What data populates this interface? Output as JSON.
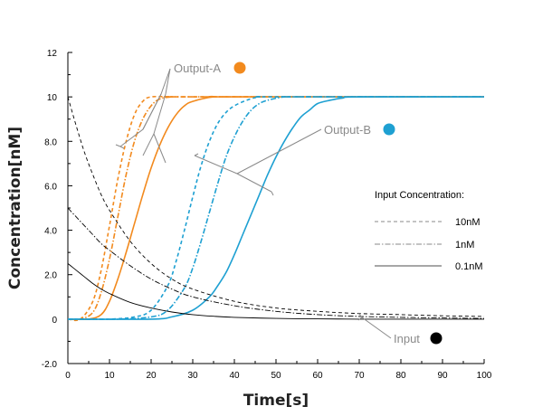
{
  "chart_data": {
    "type": "line",
    "title": "",
    "xlabel": "Time[s]",
    "ylabel": "Concentration[nM]",
    "xlim": [
      0,
      100
    ],
    "ylim": [
      -2.0,
      12.0
    ],
    "x_ticks": [
      "0",
      "10",
      "20",
      "30",
      "40",
      "50",
      "60",
      "70",
      "80",
      "90",
      "100"
    ],
    "y_ticks": [
      "-2.0",
      "0",
      "2.0",
      "4.0",
      "6.0",
      "8.0",
      "10",
      "12"
    ],
    "grid": false,
    "legend": {
      "title": "Input Concentration:",
      "placement": "right",
      "entries": [
        {
          "label": "10nM",
          "style": "dashed"
        },
        {
          "label": "1nM",
          "style": "dashdot"
        },
        {
          "label": "0.1nM",
          "style": "solid"
        }
      ]
    },
    "annotations": [
      {
        "text": "Output-A",
        "color": "#f28a1e"
      },
      {
        "text": "Output-B",
        "color": "#1ea0d2"
      },
      {
        "text": "Input",
        "color": "#000000"
      }
    ],
    "colors": {
      "output_a": "#f28a1e",
      "output_b": "#1ea0d2",
      "input": "#000000",
      "annotation": "#8a8a8a"
    },
    "series": [
      {
        "group": "Output-A",
        "input": "10nM",
        "style": "dashed",
        "x": [
          0,
          3,
          6,
          8,
          10,
          12,
          14,
          16,
          18,
          20,
          25,
          30,
          100
        ],
        "y": [
          0,
          0,
          0.8,
          2.2,
          4.2,
          6.3,
          8.0,
          9.2,
          9.8,
          10.0,
          10.0,
          10.0,
          10.0
        ]
      },
      {
        "group": "Output-A",
        "input": "1nM",
        "style": "dashdot",
        "x": [
          0,
          3,
          6,
          8,
          10,
          12,
          14,
          16,
          18,
          20,
          22,
          25,
          30,
          100
        ],
        "y": [
          0,
          0,
          0.3,
          1.2,
          2.7,
          4.6,
          6.5,
          8.0,
          9.0,
          9.6,
          9.9,
          10.0,
          10.0,
          10.0
        ]
      },
      {
        "group": "Output-A",
        "input": "0.1nM",
        "style": "solid",
        "x": [
          0,
          5,
          8,
          10,
          12,
          14,
          16,
          18,
          20,
          22,
          24,
          26,
          28,
          30,
          35,
          40,
          100
        ],
        "y": [
          0,
          0,
          0.2,
          0.8,
          1.8,
          3.0,
          4.3,
          5.6,
          6.8,
          7.8,
          8.6,
          9.2,
          9.6,
          9.8,
          10.0,
          10.0,
          10.0
        ]
      },
      {
        "group": "Output-B",
        "input": "10nM",
        "style": "dashed",
        "x": [
          0,
          10,
          16,
          20,
          24,
          26,
          28,
          30,
          32,
          34,
          36,
          38,
          40,
          43,
          46,
          50,
          100
        ],
        "y": [
          0,
          0,
          0.1,
          0.4,
          1.5,
          2.6,
          4.0,
          5.5,
          6.9,
          8.0,
          8.8,
          9.3,
          9.6,
          9.85,
          10.0,
          10.0,
          10.0
        ]
      },
      {
        "group": "Output-B",
        "input": "1nM",
        "style": "dashdot",
        "x": [
          0,
          12,
          20,
          24,
          28,
          30,
          32,
          34,
          36,
          38,
          40,
          42,
          44,
          46,
          48,
          52,
          56,
          100
        ],
        "y": [
          0,
          0,
          0.1,
          0.4,
          1.4,
          2.3,
          3.5,
          4.8,
          6.1,
          7.3,
          8.2,
          8.9,
          9.4,
          9.7,
          9.85,
          10.0,
          10.0,
          10.0
        ]
      },
      {
        "group": "Output-B",
        "input": "0.1nM",
        "style": "solid",
        "x": [
          0,
          20,
          25,
          30,
          34,
          36,
          38,
          40,
          42,
          44,
          46,
          48,
          50,
          52,
          54,
          56,
          58,
          60,
          63,
          66,
          70,
          100
        ],
        "y": [
          0,
          0,
          0.1,
          0.4,
          1.0,
          1.5,
          2.1,
          2.9,
          3.8,
          4.7,
          5.6,
          6.5,
          7.3,
          8.0,
          8.6,
          9.1,
          9.4,
          9.7,
          9.85,
          9.95,
          10.0,
          10.0
        ]
      },
      {
        "group": "Input",
        "input": "10nM",
        "style": "dashed",
        "x": [
          0,
          2,
          4,
          6,
          8,
          10,
          15,
          20,
          25,
          30,
          40,
          50,
          60,
          70,
          80,
          90,
          100
        ],
        "y": [
          10.0,
          8.7,
          7.5,
          6.5,
          5.6,
          4.9,
          3.5,
          2.5,
          1.8,
          1.35,
          0.8,
          0.5,
          0.35,
          0.25,
          0.2,
          0.15,
          0.12
        ]
      },
      {
        "group": "Input",
        "input": "1nM",
        "style": "dashdot",
        "x": [
          0,
          2,
          4,
          6,
          8,
          10,
          15,
          20,
          25,
          30,
          40,
          50,
          60,
          70,
          80,
          90,
          100
        ],
        "y": [
          5.0,
          4.6,
          4.2,
          3.8,
          3.4,
          3.1,
          2.4,
          1.8,
          1.35,
          1.0,
          0.6,
          0.35,
          0.2,
          0.12,
          0.08,
          0.05,
          0.03
        ]
      },
      {
        "group": "Input",
        "input": "0.1nM",
        "style": "solid",
        "x": [
          0,
          2,
          4,
          6,
          8,
          10,
          15,
          20,
          25,
          30,
          35,
          40,
          50,
          60,
          70,
          80,
          90,
          100
        ],
        "y": [
          2.5,
          2.2,
          1.9,
          1.6,
          1.35,
          1.15,
          0.75,
          0.5,
          0.32,
          0.2,
          0.13,
          0.08,
          0.03,
          0.01,
          0.0,
          0.0,
          0.0,
          0.0
        ]
      }
    ]
  }
}
